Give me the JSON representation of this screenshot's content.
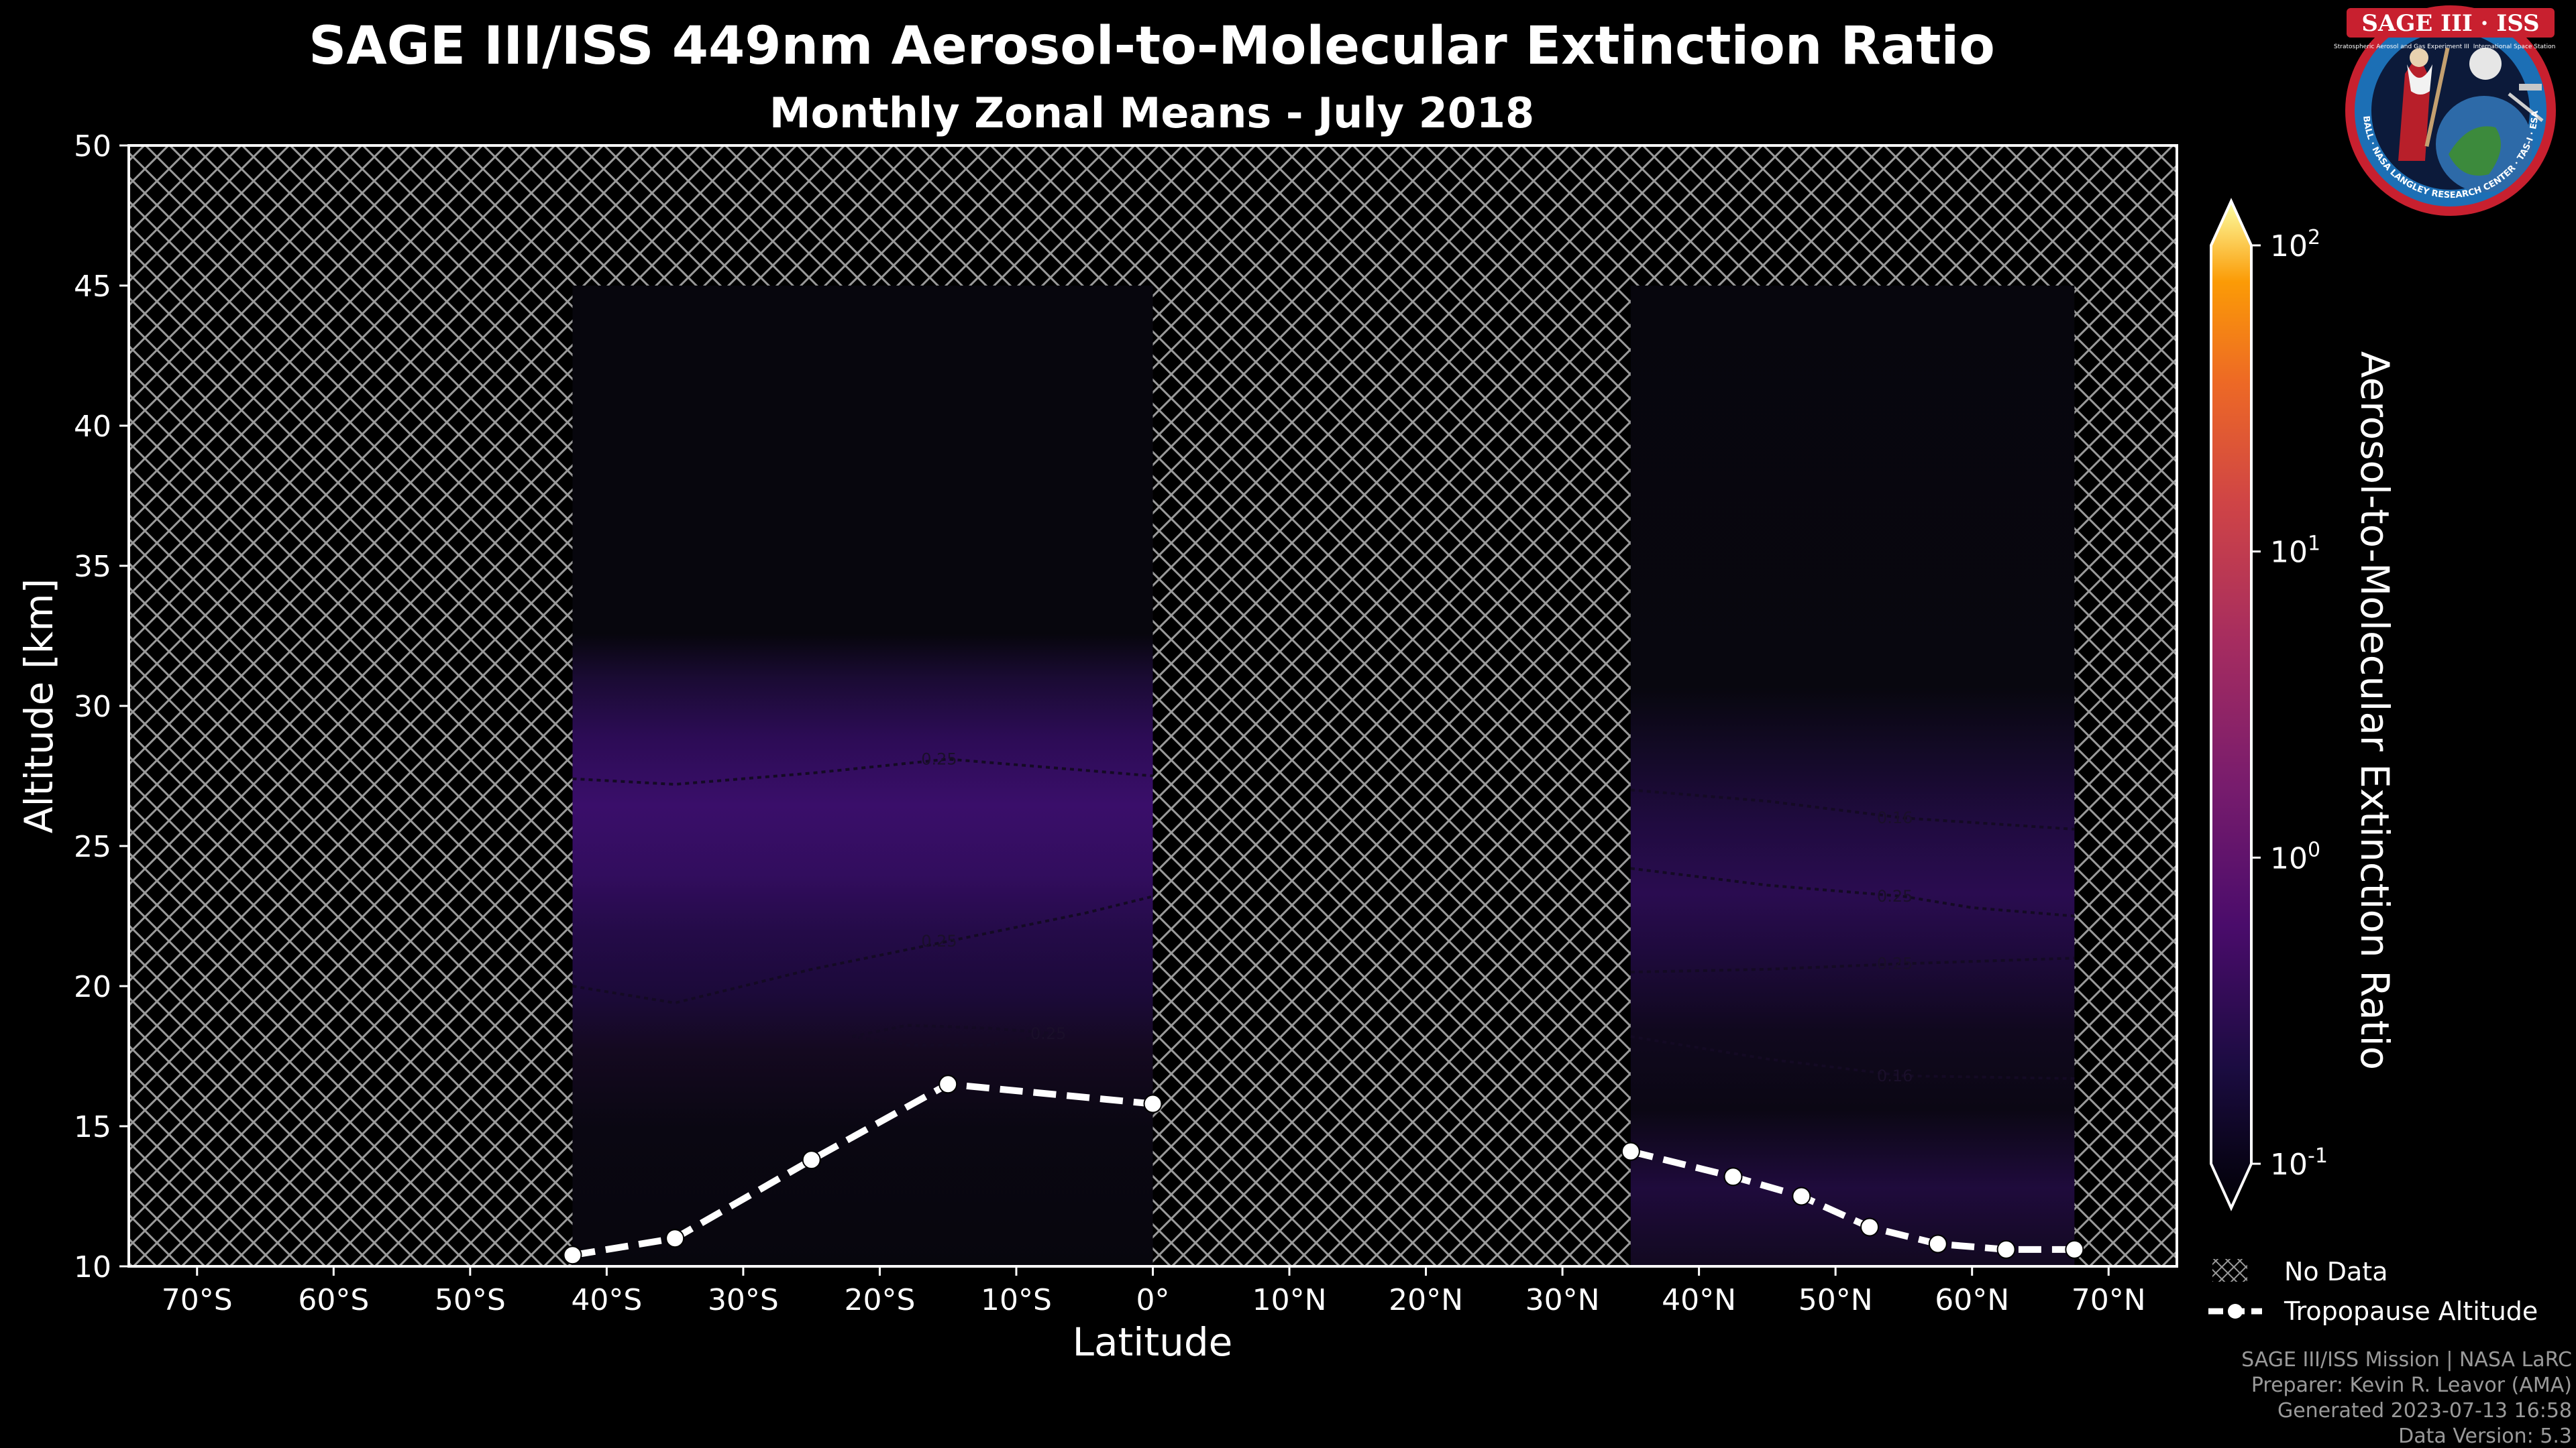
{
  "title": "SAGE III/ISS 449nm Aerosol-to-Molecular Extinction Ratio",
  "subtitle": "Monthly Zonal Means - July 2018",
  "logo": {
    "text": "SAGE III · ISS",
    "ring_text": "BALL · NASA LANGLEY RESEARCH CENTER · TAS-I · ESA",
    "small_text_1": "Stratospheric Aerosol and Gas Experiment III",
    "small_text_2": "International Space Station"
  },
  "chart_data": {
    "type": "heatmap",
    "title": "SAGE III/ISS 449nm Aerosol-to-Molecular Extinction Ratio",
    "subtitle": "Monthly Zonal Means - July 2018",
    "xlabel": "Latitude",
    "ylabel": "Altitude [km]",
    "xlim": [
      -75,
      75
    ],
    "ylim": [
      10,
      50
    ],
    "x_ticks": [
      -70,
      -60,
      -50,
      -40,
      -30,
      -20,
      -10,
      0,
      10,
      20,
      30,
      40,
      50,
      60,
      70
    ],
    "x_tick_labels": [
      "70°S",
      "60°S",
      "50°S",
      "40°S",
      "30°S",
      "20°S",
      "10°S",
      "0°",
      "10°N",
      "20°N",
      "30°N",
      "40°N",
      "50°N",
      "60°N",
      "70°N"
    ],
    "y_ticks": [
      10,
      15,
      20,
      25,
      30,
      35,
      40,
      45,
      50
    ],
    "y_tick_labels": [
      "10",
      "15",
      "20",
      "25",
      "30",
      "35",
      "40",
      "45",
      "50"
    ],
    "data_regions": [
      {
        "lat_range": [
          -42.5,
          0
        ],
        "alt_range": [
          10,
          45
        ]
      },
      {
        "lat_range": [
          35,
          67.5
        ],
        "alt_range": [
          10,
          45
        ]
      }
    ],
    "colorbar": {
      "label": "Aerosol-to-Molecular Extinction Ratio",
      "scale": "log",
      "range": [
        0.1,
        100
      ],
      "tick_values": [
        0.1,
        1,
        10,
        100
      ],
      "tick_bases": [
        "10",
        "10",
        "10",
        "10"
      ],
      "tick_exps": [
        "-1",
        "0",
        "1",
        "2"
      ],
      "colormap": "inferno"
    },
    "contours": [
      {
        "level": 0.25,
        "label": "0.25",
        "region": "south",
        "points": [
          [
            -42.5,
            27.4
          ],
          [
            -35,
            27.2
          ],
          [
            -25,
            27.6
          ],
          [
            -15,
            28.1
          ],
          [
            -5,
            27.7
          ],
          [
            0,
            27.5
          ]
        ]
      },
      {
        "level": 0.25,
        "label": "0.25",
        "region": "south",
        "points": [
          [
            -42.5,
            20.0
          ],
          [
            -35,
            19.4
          ],
          [
            -25,
            20.6
          ],
          [
            -15,
            21.6
          ],
          [
            -5,
            22.6
          ],
          [
            0,
            23.2
          ]
        ]
      },
      {
        "level": 0.25,
        "label": "0.25",
        "region": "south-island",
        "points": [
          [
            -22,
            18.2
          ],
          [
            -18,
            18.6
          ],
          [
            -12,
            18.5
          ],
          [
            -7,
            18.3
          ],
          [
            -12,
            17.9
          ],
          [
            -18,
            17.9
          ],
          [
            -22,
            18.2
          ]
        ]
      },
      {
        "level": 0.16,
        "label": "0.16",
        "region": "north",
        "points": [
          [
            35,
            27.0
          ],
          [
            45,
            26.6
          ],
          [
            55,
            26.0
          ],
          [
            67.5,
            25.6
          ]
        ]
      },
      {
        "level": 0.25,
        "label": "0.25",
        "region": "north",
        "points": [
          [
            35,
            24.2
          ],
          [
            45,
            23.6
          ],
          [
            55,
            23.2
          ],
          [
            60,
            22.8
          ],
          [
            67.5,
            22.5
          ]
        ]
      },
      {
        "level": 0.25,
        "label": "0.25",
        "region": "north",
        "points": [
          [
            35,
            20.5
          ],
          [
            45,
            20.6
          ],
          [
            55,
            20.8
          ],
          [
            67.5,
            21.0
          ]
        ]
      },
      {
        "level": 0.16,
        "label": "0.16",
        "region": "north",
        "points": [
          [
            35,
            18.2
          ],
          [
            45,
            17.4
          ],
          [
            55,
            16.8
          ],
          [
            67.5,
            16.7
          ]
        ]
      }
    ],
    "series": [
      {
        "name": "Tropopause Altitude",
        "x": [
          -42.5,
          -35,
          -25,
          -15,
          0
        ],
        "y": [
          10.4,
          11.0,
          13.8,
          16.5,
          15.8
        ]
      },
      {
        "name": "Tropopause Altitude",
        "x": [
          35,
          42.5,
          47.5,
          52.5,
          57.5,
          62.5,
          67.5
        ],
        "y": [
          14.1,
          13.2,
          12.5,
          11.4,
          10.8,
          10.6,
          10.6
        ]
      }
    ],
    "legend": {
      "placement": "bottom-right",
      "items": [
        {
          "label": "No Data",
          "symbol": "hatch"
        },
        {
          "label": "Tropopause Altitude",
          "symbol": "dashed-line-dot"
        }
      ]
    },
    "grid": false
  },
  "credits": [
    "SAGE III/ISS Mission | NASA LaRC",
    "Preparer: Kevin R. Leavor (AMA)",
    "Generated 2023-07-13 16:58",
    "Data Version: 5.3"
  ],
  "colors": {
    "background": "#000000",
    "tropopause": "#ffffff",
    "hatch": "#9a9a9a",
    "data_base": "#07060d",
    "aerosol_layer": "#3a0e68"
  }
}
